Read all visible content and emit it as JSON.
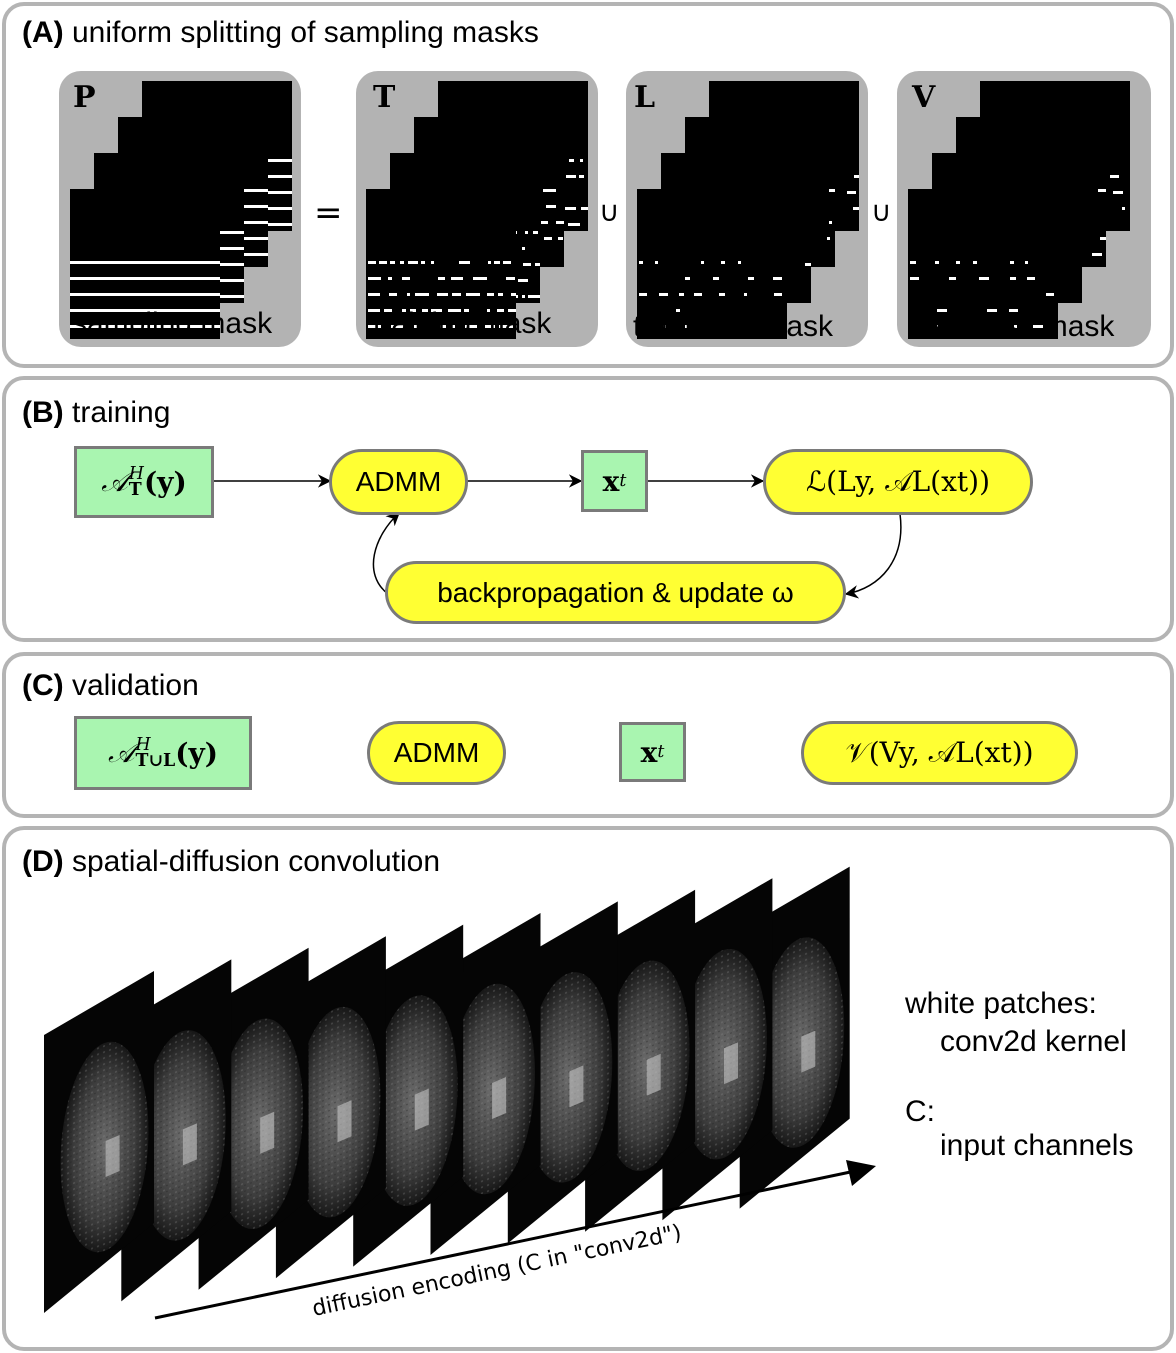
{
  "panels": {
    "a": {
      "letter": "(A)",
      "title": "uniform splitting of sampling masks"
    },
    "b": {
      "letter": "(B)",
      "title": "training"
    },
    "c": {
      "letter": "(C)",
      "title": "validation"
    },
    "d": {
      "letter": "(D)",
      "title": "spatial-diffusion convolution"
    }
  },
  "masks": [
    {
      "letter": "P",
      "label": "sampling mask"
    },
    {
      "letter": "T",
      "label": "training mask"
    },
    {
      "letter": "L",
      "label": "train loss mask"
    },
    {
      "letter": "V",
      "label": "valid loss mask"
    }
  ],
  "operators": {
    "equals": "=",
    "union1": "∪",
    "union2": "∪"
  },
  "training": {
    "input_op": "𝒜",
    "input_sup": "H",
    "input_sub": "T",
    "input_arg": "(y)",
    "admm": "ADMM",
    "xt_base": "x",
    "xt_sub": "t",
    "loss": "ℒ(Ly, 𝒜L(xt))",
    "backprop": "backpropagation & update ω"
  },
  "validation": {
    "input_op": "𝒜",
    "input_sup": "H",
    "input_sub": "T∪L",
    "input_arg": "(y)",
    "admm": "ADMM",
    "xt_base": "x",
    "xt_sub": "t",
    "loss": "𝒱(Vy, 𝒜L(xt))"
  },
  "convolution": {
    "axis_label": "diffusion encoding (C in \"conv2d\")",
    "note1_line1": "white patches:",
    "note1_line2": "conv2d kernel",
    "note2_line1": "C:",
    "note2_line2": "input channels",
    "slice_count": 10
  }
}
